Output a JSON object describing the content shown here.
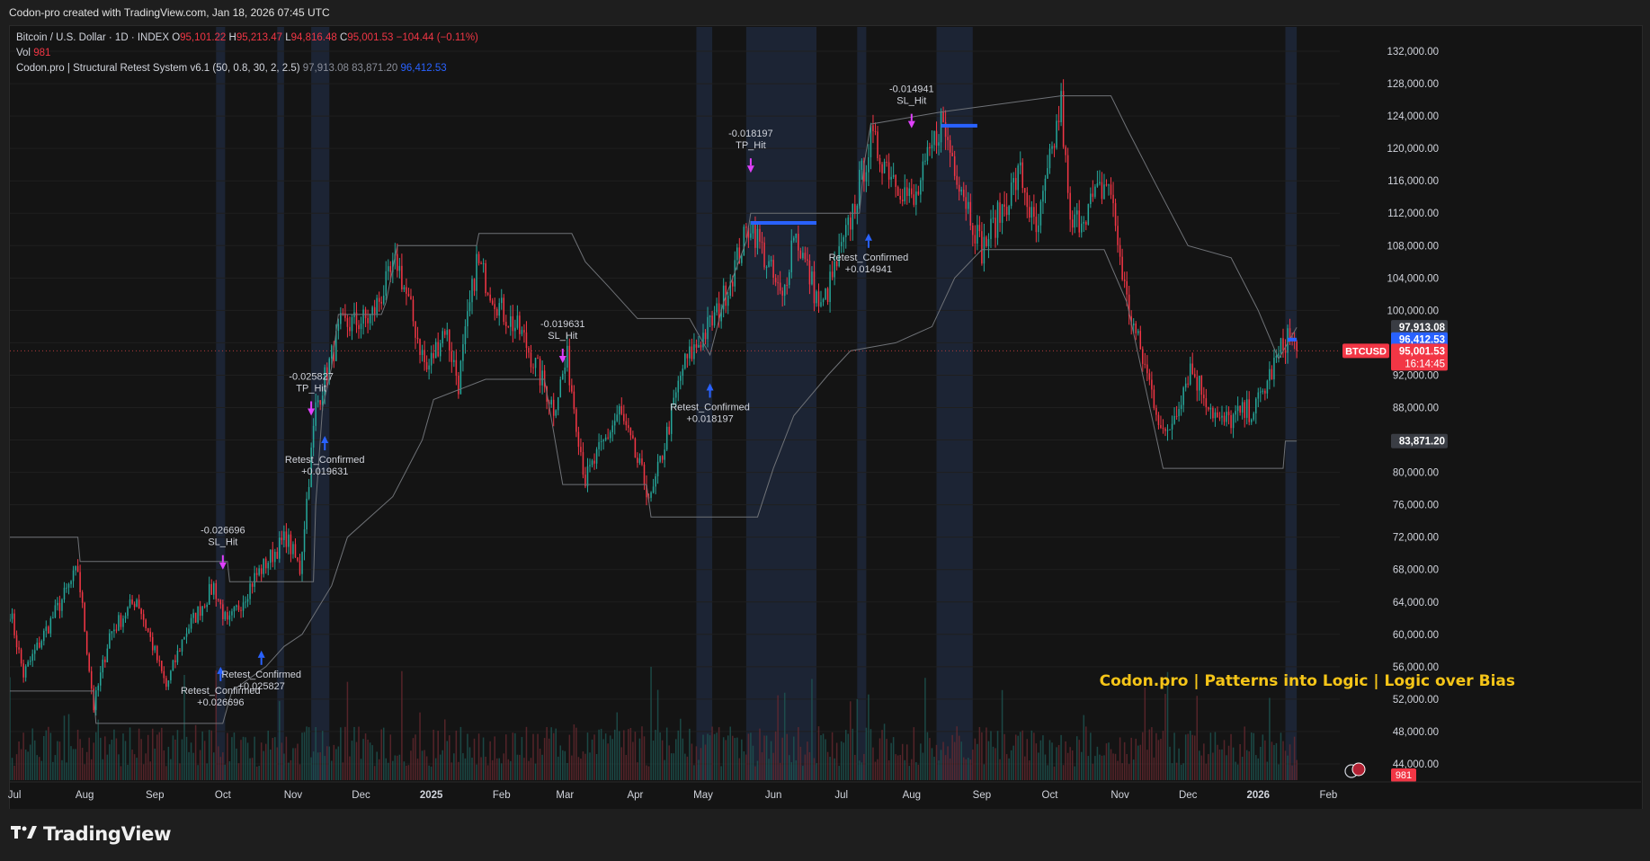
{
  "header": {
    "created_text": "Codon-pro created with TradingView.com, Jan 18, 2026 07:45 UTC"
  },
  "legend": {
    "symbol": "Bitcoin / U.S. Dollar · 1D · INDEX",
    "o_label": "O",
    "o_value": "95,101.22",
    "h_label": "H",
    "h_value": "95,213.47",
    "l_label": "L",
    "l_value": "94,816.48",
    "c_label": "C",
    "c_value": "95,001.53",
    "change": "−104.44 (−0.11%)",
    "vol_label": "Vol",
    "vol_value": "981",
    "indicator": "Codon.pro | Structural Retest System v6.1 (50, 0.8, 30, 2, 2.5)",
    "ind_v1": "97,913.08",
    "ind_v2": "83,871.20",
    "ind_v3": "96,412.53"
  },
  "watermark": "Codon.pro | Patterns into Logic | Logic over Bias",
  "footer": {
    "brand": "TradingView"
  },
  "colors": {
    "up": "#26a69a",
    "down": "#f23645",
    "bg": "#141414",
    "grid": "#1f1f1f",
    "band": "#1c2434",
    "channel": "#6f7277",
    "signal": "#2962ff",
    "magenta": "#e040fb",
    "watermark": "#f5c518"
  },
  "icons": [
    "tradingview-logo-icon",
    "flag-icon",
    "clock-icon"
  ],
  "chart_data": {
    "type": "candlestick",
    "symbol": "BTCUSD",
    "timeframe": "1D",
    "ylim": [
      42000,
      135000
    ],
    "y_ticks": [
      44000,
      48000,
      52000,
      56000,
      60000,
      64000,
      68000,
      72000,
      76000,
      80000,
      84000,
      88000,
      92000,
      96000,
      100000,
      104000,
      108000,
      112000,
      116000,
      120000,
      124000,
      128000,
      132000
    ],
    "y_tick_labels": [
      "44,000.00",
      "48,000.00",
      "52,000.00",
      "56,000.00",
      "60,000.00",
      "64,000.00",
      "68,000.00",
      "72,000.00",
      "76,000.00",
      "80,000.00",
      "84,000.00",
      "88,000.00",
      "92,000.00",
      "96,000.00",
      "100,000.00",
      "104,000.00",
      "108,000.00",
      "112,000.00",
      "116,000.00",
      "120,000.00",
      "124,000.00",
      "128,000.00",
      "132,000.00"
    ],
    "x_start": "2024-06-29",
    "x_end": "2026-02-06",
    "month_ticks": [
      {
        "date": "2024-07-01",
        "label": "Jul"
      },
      {
        "date": "2024-08-01",
        "label": "Aug"
      },
      {
        "date": "2024-09-01",
        "label": "Sep"
      },
      {
        "date": "2024-10-01",
        "label": "Oct"
      },
      {
        "date": "2024-11-01",
        "label": "Nov"
      },
      {
        "date": "2024-12-01",
        "label": "Dec"
      },
      {
        "date": "2025-01-01",
        "label": "2025"
      },
      {
        "date": "2025-02-01",
        "label": "Feb"
      },
      {
        "date": "2025-03-01",
        "label": "Mar"
      },
      {
        "date": "2025-04-01",
        "label": "Apr"
      },
      {
        "date": "2025-05-01",
        "label": "May"
      },
      {
        "date": "2025-06-01",
        "label": "Jun"
      },
      {
        "date": "2025-07-01",
        "label": "Jul"
      },
      {
        "date": "2025-08-01",
        "label": "Aug"
      },
      {
        "date": "2025-09-01",
        "label": "Sep"
      },
      {
        "date": "2025-10-01",
        "label": "Oct"
      },
      {
        "date": "2025-11-01",
        "label": "Nov"
      },
      {
        "date": "2025-12-01",
        "label": "Dec"
      },
      {
        "date": "2026-01-01",
        "label": "2026"
      },
      {
        "date": "2026-02-01",
        "label": "Feb"
      }
    ],
    "price_anchors": [
      [
        "2024-06-29",
        63000
      ],
      [
        "2024-07-05",
        55000
      ],
      [
        "2024-07-14",
        60000
      ],
      [
        "2024-07-29",
        68000
      ],
      [
        "2024-08-05",
        51000
      ],
      [
        "2024-08-12",
        60000
      ],
      [
        "2024-08-24",
        64500
      ],
      [
        "2024-09-06",
        53500
      ],
      [
        "2024-09-14",
        60000
      ],
      [
        "2024-09-27",
        66000
      ],
      [
        "2024-10-03",
        61000
      ],
      [
        "2024-10-15",
        67000
      ],
      [
        "2024-10-29",
        72000
      ],
      [
        "2024-11-04",
        68000
      ],
      [
        "2024-11-11",
        88000
      ],
      [
        "2024-11-22",
        98000
      ],
      [
        "2024-12-05",
        99000
      ],
      [
        "2024-12-17",
        106000
      ],
      [
        "2024-12-30",
        92500
      ],
      [
        "2025-01-07",
        98000
      ],
      [
        "2025-01-13",
        91000
      ],
      [
        "2025-01-21",
        106000
      ],
      [
        "2025-02-01",
        100000
      ],
      [
        "2025-02-10",
        97000
      ],
      [
        "2025-02-24",
        88000
      ],
      [
        "2025-03-02",
        94000
      ],
      [
        "2025-03-10",
        79000
      ],
      [
        "2025-03-25",
        87500
      ],
      [
        "2025-04-08",
        76500
      ],
      [
        "2025-04-22",
        93000
      ],
      [
        "2025-05-08",
        100000
      ],
      [
        "2025-05-22",
        111000
      ],
      [
        "2025-06-05",
        101000
      ],
      [
        "2025-06-10",
        110000
      ],
      [
        "2025-06-22",
        100000
      ],
      [
        "2025-07-03",
        109000
      ],
      [
        "2025-07-14",
        121000
      ],
      [
        "2025-08-02",
        113000
      ],
      [
        "2025-08-14",
        123500
      ],
      [
        "2025-09-01",
        107500
      ],
      [
        "2025-09-18",
        117000
      ],
      [
        "2025-09-25",
        109000
      ],
      [
        "2025-10-06",
        125500
      ],
      [
        "2025-10-10",
        110000
      ],
      [
        "2025-10-27",
        116000
      ],
      [
        "2025-11-04",
        101000
      ],
      [
        "2025-11-21",
        84000
      ],
      [
        "2025-12-02",
        93000
      ],
      [
        "2025-12-15",
        86000
      ],
      [
        "2025-12-31",
        88000
      ],
      [
        "2026-01-14",
        97000
      ],
      [
        "2026-01-18",
        95001
      ]
    ],
    "volume_label": "981",
    "last_price": 95001.53,
    "last_price_label": "95,001.53",
    "countdown": "16:14:45",
    "tag_label": "BTCUSD",
    "upper_channel_value": "97,913.08",
    "signal_value": "96,412.53",
    "lower_channel_value": "83,871.20",
    "upper_channel": [
      [
        "2024-06-29",
        72000
      ],
      [
        "2024-07-29",
        72000
      ],
      [
        "2024-07-30",
        69000
      ],
      [
        "2024-10-03",
        69000
      ],
      [
        "2024-10-04",
        66500
      ],
      [
        "2024-11-10",
        66500
      ],
      [
        "2024-11-11",
        76000
      ],
      [
        "2024-11-14",
        88000
      ],
      [
        "2024-11-18",
        93000
      ],
      [
        "2024-11-21",
        99500
      ],
      [
        "2024-12-10",
        99500
      ],
      [
        "2024-12-12",
        101000
      ],
      [
        "2024-12-17",
        108000
      ],
      [
        "2025-01-21",
        108000
      ],
      [
        "2025-01-22",
        109500
      ],
      [
        "2025-03-04",
        109500
      ],
      [
        "2025-03-10",
        106000
      ],
      [
        "2025-03-20",
        103000
      ],
      [
        "2025-04-02",
        99000
      ],
      [
        "2025-04-25",
        99000
      ],
      [
        "2025-05-04",
        94500
      ],
      [
        "2025-05-10",
        101000
      ],
      [
        "2025-05-20",
        108500
      ],
      [
        "2025-05-22",
        112000
      ],
      [
        "2025-07-09",
        112000
      ],
      [
        "2025-07-11",
        118000
      ],
      [
        "2025-07-14",
        123000
      ],
      [
        "2025-08-14",
        124500
      ],
      [
        "2025-10-06",
        126500
      ],
      [
        "2025-10-28",
        126500
      ],
      [
        "2025-11-04",
        122500
      ],
      [
        "2025-11-16",
        116000
      ],
      [
        "2025-12-01",
        108000
      ],
      [
        "2025-12-20",
        106500
      ],
      [
        "2026-01-01",
        100000
      ],
      [
        "2026-01-10",
        94000
      ],
      [
        "2026-01-18",
        97913
      ]
    ],
    "lower_channel": [
      [
        "2024-06-29",
        53000
      ],
      [
        "2024-08-05",
        53000
      ],
      [
        "2024-08-06",
        49000
      ],
      [
        "2024-10-01",
        49000
      ],
      [
        "2024-10-05",
        53000
      ],
      [
        "2024-10-20",
        56000
      ],
      [
        "2024-10-28",
        58500
      ],
      [
        "2024-11-05",
        60000
      ],
      [
        "2024-11-18",
        66000
      ],
      [
        "2024-11-25",
        72000
      ],
      [
        "2024-12-15",
        77000
      ],
      [
        "2024-12-28",
        84000
      ],
      [
        "2025-01-02",
        89000
      ],
      [
        "2025-01-25",
        91500
      ],
      [
        "2025-02-20",
        91500
      ],
      [
        "2025-02-28",
        78500
      ],
      [
        "2025-04-06",
        78500
      ],
      [
        "2025-04-08",
        74500
      ],
      [
        "2025-05-25",
        74500
      ],
      [
        "2025-06-01",
        80500
      ],
      [
        "2025-06-10",
        87000
      ],
      [
        "2025-06-25",
        92000
      ],
      [
        "2025-07-05",
        95000
      ],
      [
        "2025-07-25",
        96000
      ],
      [
        "2025-08-10",
        98000
      ],
      [
        "2025-08-20",
        104000
      ],
      [
        "2025-09-01",
        107500
      ],
      [
        "2025-10-25",
        107500
      ],
      [
        "2025-11-04",
        101000
      ],
      [
        "2025-11-20",
        80500
      ],
      [
        "2026-01-12",
        80500
      ],
      [
        "2026-01-13",
        83871
      ],
      [
        "2026-01-18",
        83871
      ]
    ],
    "session_bands": [
      [
        "2024-09-28",
        "2024-10-02"
      ],
      [
        "2024-10-25",
        "2024-10-28"
      ],
      [
        "2024-11-09",
        "2024-11-17"
      ],
      [
        "2025-04-28",
        "2025-05-05"
      ],
      [
        "2025-05-20",
        "2025-06-20"
      ],
      [
        "2025-07-08",
        "2025-07-12"
      ],
      [
        "2025-08-12",
        "2025-08-28"
      ],
      [
        "2026-01-13",
        "2026-01-18"
      ]
    ],
    "signal_lines": [
      {
        "from": "2025-05-22",
        "to": "2025-06-20",
        "value": 110800
      },
      {
        "from": "2025-08-14",
        "to": "2025-08-30",
        "value": 122800
      },
      {
        "from": "2026-01-14",
        "to": "2026-01-18",
        "value": 96400
      }
    ],
    "annotations": [
      {
        "date": "2024-10-01",
        "price": 68000,
        "lines": [
          "-0.026696",
          "SL_Hit"
        ],
        "marker": "down",
        "mcolor": "magenta"
      },
      {
        "date": "2024-09-30",
        "price": 56000,
        "lines": [
          "Retest_Confirmed",
          "+0.026696"
        ],
        "marker": "up",
        "mcolor": "blue"
      },
      {
        "date": "2024-10-18",
        "price": 58000,
        "lines": [
          "Retest_Confirmed",
          "+0.025827"
        ],
        "marker": "up",
        "mcolor": "blue"
      },
      {
        "date": "2024-11-09",
        "price": 87000,
        "lines": [
          "-0.025827",
          "TP_Hit"
        ],
        "marker": "down",
        "mcolor": "magenta"
      },
      {
        "date": "2024-11-15",
        "price": 84500,
        "lines": [
          "Retest_Confirmed",
          "+0.019631"
        ],
        "marker": "up",
        "mcolor": "blue"
      },
      {
        "date": "2025-02-28",
        "price": 93500,
        "lines": [
          "-0.019631",
          "SL_Hit"
        ],
        "marker": "down",
        "mcolor": "magenta"
      },
      {
        "date": "2025-05-04",
        "price": 91000,
        "lines": [
          "Retest_Confirmed",
          "+0.018197"
        ],
        "marker": "up",
        "mcolor": "blue"
      },
      {
        "date": "2025-05-22",
        "price": 117000,
        "lines": [
          "-0.018197",
          "TP_Hit"
        ],
        "marker": "down",
        "mcolor": "magenta"
      },
      {
        "date": "2025-07-13",
        "price": 109500,
        "lines": [
          "Retest_Confirmed",
          "+0.014941"
        ],
        "marker": "up",
        "mcolor": "blue"
      },
      {
        "date": "2025-08-01",
        "price": 122500,
        "lines": [
          "-0.014941",
          "SL_Hit"
        ],
        "marker": "down",
        "mcolor": "magenta"
      }
    ]
  }
}
